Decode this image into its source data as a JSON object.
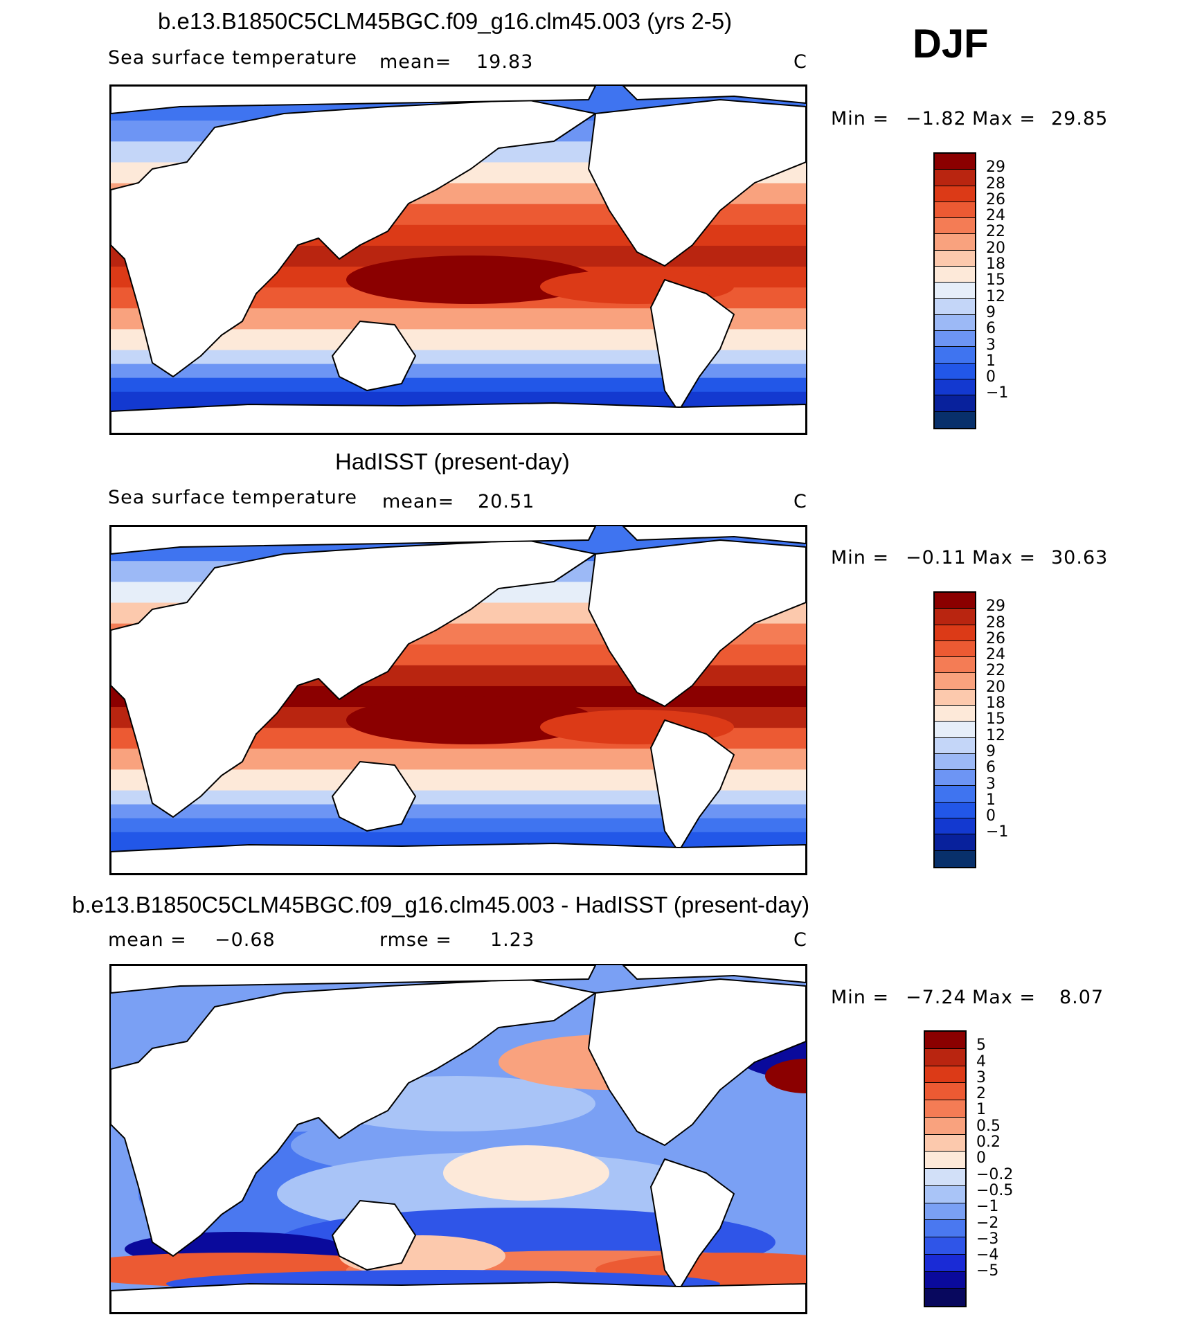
{
  "season_label": "DJF",
  "colors": {
    "sst_levels": [
      "#08306b",
      "#08219c",
      "#1339d0",
      "#2257e8",
      "#3f74f0",
      "#6d95f4",
      "#9cb9f6",
      "#c4d6f8",
      "#e6eef9",
      "#fde9d9",
      "#fcc9ad",
      "#f9a27e",
      "#f47c55",
      "#ec5a33",
      "#dc3a17",
      "#b92510",
      "#8b0000"
    ],
    "diff_levels": [
      "#08085e",
      "#0a0a9c",
      "#1a2bd6",
      "#2f55e8",
      "#4a78f0",
      "#7aa0f4",
      "#a9c4f7",
      "#d2e0f8",
      "#fde9d9",
      "#fcc9ad",
      "#f9a27e",
      "#f47c55",
      "#ec5a33",
      "#dc3a17",
      "#b92510",
      "#8b0000"
    ],
    "land": "#ffffff",
    "coast": "#000000"
  },
  "panels": [
    {
      "title": "b.e13.B1850C5CLM45BGC.f09_g16.clm45.003 (yrs 2-5)",
      "variable": "Sea surface temperature",
      "stat1_label": "mean=",
      "stat1_value": "19.83",
      "stat2_label": "",
      "stat2_value": "",
      "units": "C",
      "min_label": "Min  =",
      "min_value": "−1.82",
      "max_label": "Max  =",
      "max_value": "29.85",
      "colorbar_ticks": [
        "29",
        "28",
        "26",
        "24",
        "22",
        "20",
        "18",
        "15",
        "12",
        "9",
        "6",
        "3",
        "1",
        "0",
        "−1"
      ]
    },
    {
      "title": "HadISST (present-day)",
      "variable": "Sea surface temperature",
      "stat1_label": "mean=",
      "stat1_value": "20.51",
      "stat2_label": "",
      "stat2_value": "",
      "units": "C",
      "min_label": "Min  =",
      "min_value": "−0.11",
      "max_label": "Max  =",
      "max_value": "30.63",
      "colorbar_ticks": [
        "29",
        "28",
        "26",
        "24",
        "22",
        "20",
        "18",
        "15",
        "12",
        "9",
        "6",
        "3",
        "1",
        "0",
        "−1"
      ]
    },
    {
      "title": "b.e13.B1850C5CLM45BGC.f09_g16.clm45.003 - HadISST (present-day)",
      "variable": "",
      "stat1_label": "mean  =",
      "stat1_value": "−0.68",
      "stat2_label": "rmse  =",
      "stat2_value": "1.23",
      "units": "C",
      "min_label": "Min  =",
      "min_value": "−7.24",
      "max_label": "Max  =",
      "max_value": "8.07",
      "colorbar_ticks": [
        "5",
        "4",
        "3",
        "2",
        "1",
        "0.5",
        "0.2",
        "0",
        "−0.2",
        "−0.5",
        "−1",
        "−2",
        "−3",
        "−4",
        "−5"
      ]
    }
  ]
}
